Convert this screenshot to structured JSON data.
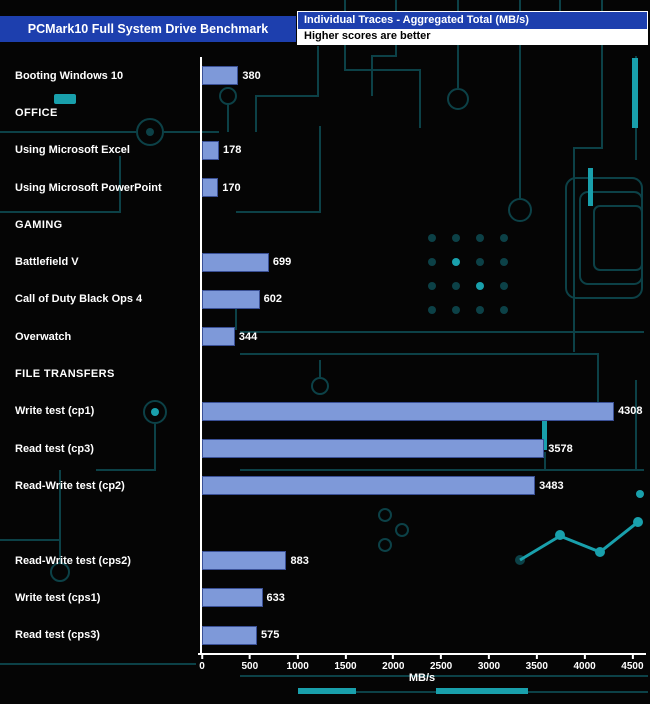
{
  "header": {
    "title": "PCMark10 Full System Drive Benchmark",
    "legend_series": "Individual Traces - Aggregated Total (MB/s)",
    "legend_note": "Higher scores are better"
  },
  "colors": {
    "header_bg": "#1d3fae",
    "bar_fill": "#7e99d9",
    "bar_border": "#3a5096",
    "background": "#050505",
    "trace": "#0c4147",
    "trace_bright": "#19a0ac",
    "axis": "#ffffff",
    "text": "#ffffff"
  },
  "chart_data": {
    "type": "bar",
    "orientation": "horizontal",
    "title": "PCMark10 Full System Drive Benchmark",
    "subtitle": "Individual Traces - Aggregated Total (MB/s)",
    "note": "Higher scores are better",
    "xlabel": "MB/s",
    "xlim": [
      0,
      4600
    ],
    "xticks": [
      0,
      500,
      1000,
      1500,
      2000,
      2500,
      3000,
      3500,
      4000,
      4500
    ],
    "grid": false,
    "legend_position": "top-right",
    "rows": [
      {
        "type": "bar",
        "label": "Booting Windows 10",
        "value": 380
      },
      {
        "type": "section",
        "label": "OFFICE"
      },
      {
        "type": "bar",
        "label": "Using Microsoft Excel",
        "value": 178
      },
      {
        "type": "bar",
        "label": "Using Microsoft PowerPoint",
        "value": 170
      },
      {
        "type": "section",
        "label": "GAMING"
      },
      {
        "type": "bar",
        "label": "Battlefield V",
        "value": 699
      },
      {
        "type": "bar",
        "label": "Call of Duty Black Ops 4",
        "value": 602
      },
      {
        "type": "bar",
        "label": "Overwatch",
        "value": 344
      },
      {
        "type": "section",
        "label": "FILE TRANSFERS"
      },
      {
        "type": "bar",
        "label": "Write test (cp1)",
        "value": 4308
      },
      {
        "type": "bar",
        "label": "Read test (cp3)",
        "value": 3578
      },
      {
        "type": "bar",
        "label": "Read-Write test (cp2)",
        "value": 3483
      },
      {
        "type": "spacer",
        "label": ""
      },
      {
        "type": "bar",
        "label": "Read-Write test (cps2)",
        "value": 883
      },
      {
        "type": "bar",
        "label": "Write test (cps1)",
        "value": 633
      },
      {
        "type": "bar",
        "label": "Read test (cps3)",
        "value": 575
      }
    ]
  }
}
